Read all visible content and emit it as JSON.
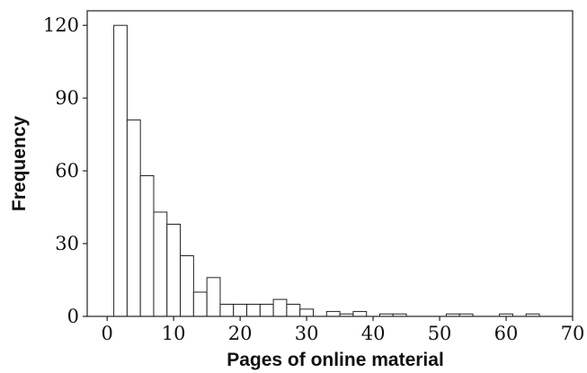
{
  "chart_data": {
    "type": "bar",
    "xlabel": "Pages of online material",
    "ylabel": "Frequency",
    "xlim": [
      -3,
      70
    ],
    "ylim": [
      0,
      126
    ],
    "bin_width": 2,
    "bin_start": 1,
    "xticks": [
      0,
      10,
      20,
      30,
      40,
      50,
      60,
      70
    ],
    "yticks": [
      0,
      30,
      60,
      90,
      120
    ],
    "values": [
      120,
      81,
      58,
      43,
      38,
      25,
      10,
      16,
      5,
      5,
      5,
      5,
      7,
      5,
      3,
      0,
      2,
      1,
      2,
      0,
      1,
      1,
      0,
      0,
      0,
      1,
      1,
      0,
      0,
      1,
      0,
      1
    ],
    "grid": false,
    "colors": {
      "bar_fill": "#ffffff",
      "bar_stroke": "#222222"
    }
  }
}
